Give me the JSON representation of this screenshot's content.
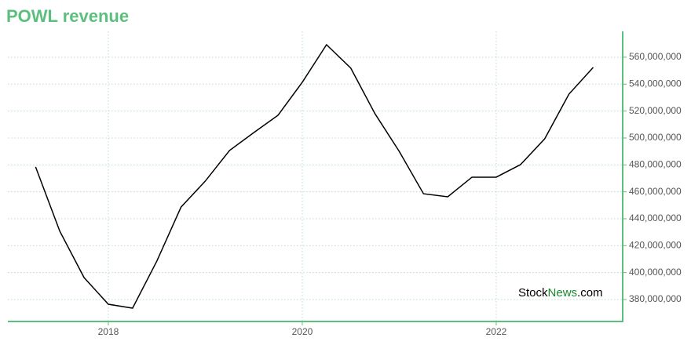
{
  "chart_data": {
    "type": "line",
    "title": "POWL revenue",
    "x": [
      2017.25,
      2017.5,
      2017.75,
      2018,
      2018.25,
      2018.5,
      2018.75,
      2019,
      2019.25,
      2019.5,
      2019.75,
      2020,
      2020.25,
      2020.5,
      2020.75,
      2021,
      2021.25,
      2021.5,
      2021.75,
      2022,
      2022.25,
      2022.5,
      2022.75,
      2023
    ],
    "series": [
      {
        "name": "POWL revenue",
        "color": "#000000",
        "values": [
          478500000,
          430700000,
          396300000,
          376500000,
          373600000,
          408500000,
          448700000,
          468000000,
          490700000,
          504000000,
          516900000,
          541400000,
          569300000,
          551900000,
          518000000,
          490000000,
          458600000,
          456300000,
          470900000,
          470900000,
          480200000,
          499400000,
          532600000,
          552400000
        ]
      }
    ],
    "xlim": [
      2016.964,
      2023.304
    ],
    "xticks": [
      2018,
      2020,
      2022
    ],
    "ylim": [
      363700000,
      579200000
    ],
    "yticks": [
      {
        "value": 380000000,
        "label": "380,000,000"
      },
      {
        "value": 400000000,
        "label": "400,000,000"
      },
      {
        "value": 420000000,
        "label": "420,000,000"
      },
      {
        "value": 440000000,
        "label": "440,000,000"
      },
      {
        "value": 460000000,
        "label": "460,000,000"
      },
      {
        "value": 480000000,
        "label": "480,000,000"
      },
      {
        "value": 500000000,
        "label": "500,000,000"
      },
      {
        "value": 520000000,
        "label": "520,000,000"
      },
      {
        "value": 540000000,
        "label": "540,000,000"
      },
      {
        "value": 560000000,
        "label": "560,000,000"
      }
    ],
    "grid": true,
    "axis_color": "#5cbf7e",
    "title_color": "#5cbf7e",
    "watermark": {
      "prefix": "Stock",
      "highlight": "News",
      "suffix": ".com",
      "highlight_color": "#1a8a2e"
    }
  }
}
